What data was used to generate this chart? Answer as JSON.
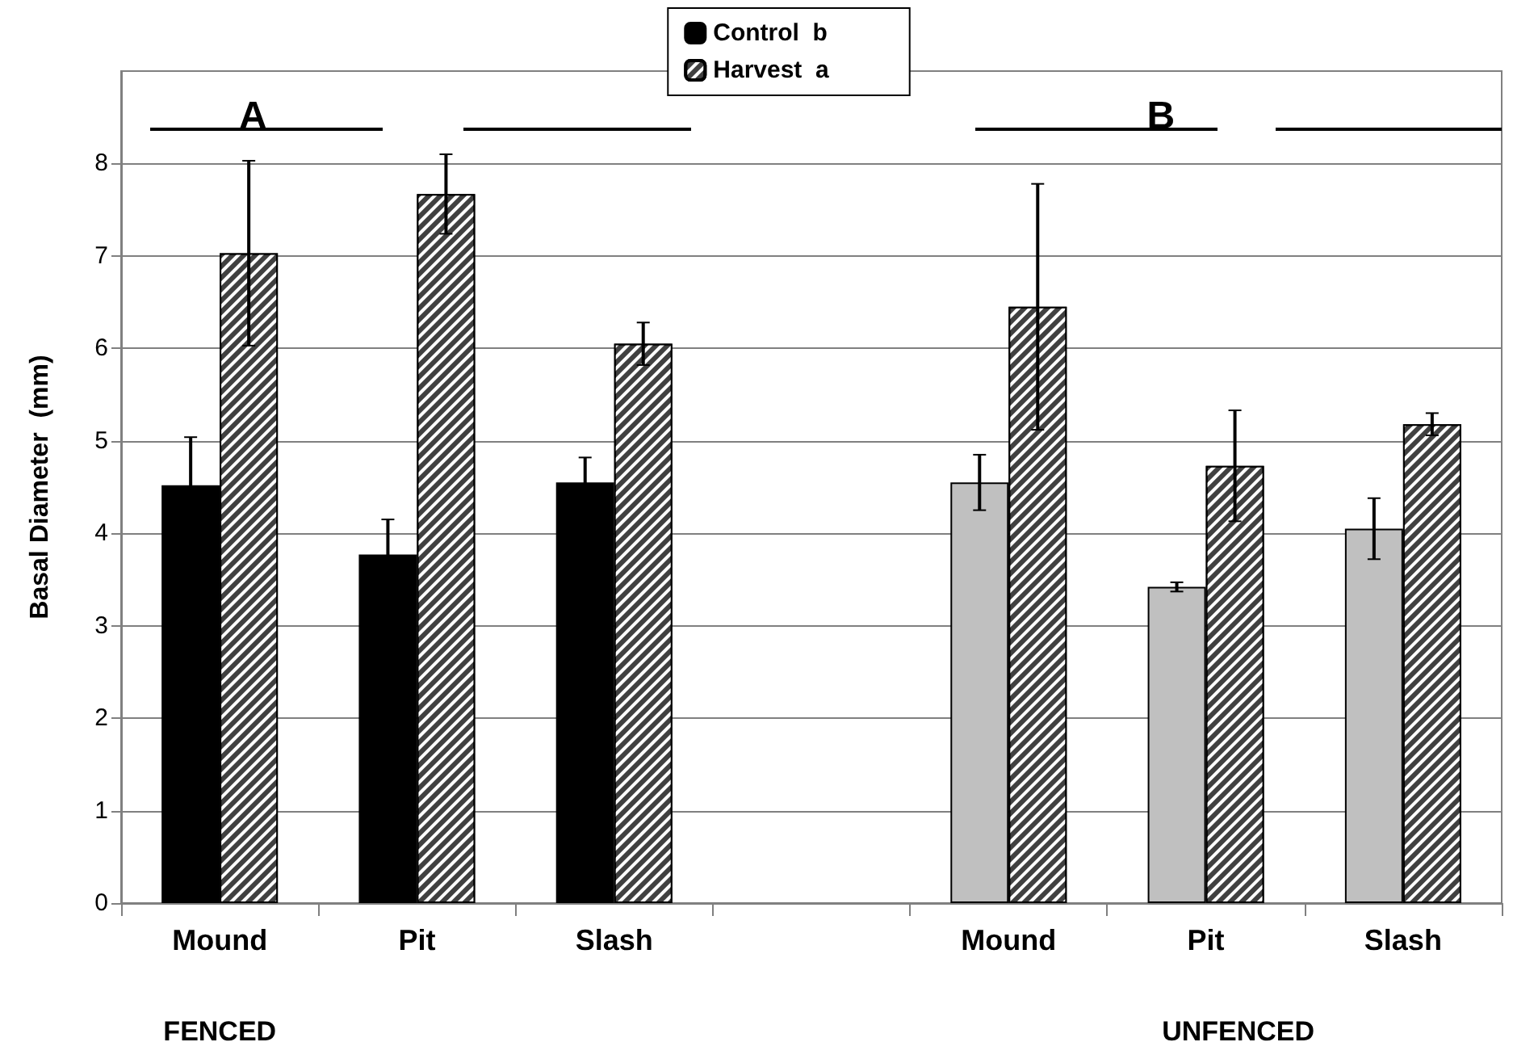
{
  "chart_data": {
    "type": "bar",
    "ylabel": "Basal Diameter  (mm)",
    "categories": [
      "Mound",
      "Pit",
      "Slash",
      null,
      "Mound",
      "Pit",
      "Slash"
    ],
    "series": [
      {
        "name": "Control  b",
        "color": "#000000",
        "colors": [
          "#000000",
          "#000000",
          "#000000",
          null,
          "#c0c0c0",
          "#c0c0c0",
          "#c0c0c0"
        ],
        "values": [
          4.52,
          3.77,
          4.55,
          null,
          4.55,
          3.42,
          4.05
        ],
        "errors": [
          0.52,
          0.38,
          0.27,
          null,
          0.3,
          0.05,
          0.33
        ]
      },
      {
        "name": "Harvest  a",
        "color": "#404040",
        "values": [
          7.03,
          7.67,
          6.05,
          null,
          6.45,
          4.73,
          5.18
        ],
        "errors": [
          1.0,
          0.43,
          0.23,
          null,
          1.33,
          0.6,
          0.12
        ]
      }
    ],
    "ylim": [
      0,
      9
    ],
    "yticks": [
      0,
      1,
      2,
      3,
      4,
      5,
      6,
      7,
      8
    ],
    "grid": "y",
    "legend": "top",
    "annotations": [
      "A",
      "B",
      "FENCED",
      "UNFENCED"
    ]
  }
}
